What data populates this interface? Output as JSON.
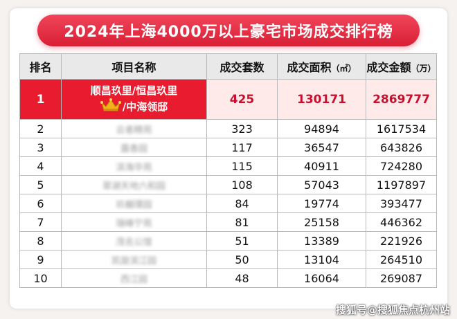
{
  "title": "2024年上海4000万以上豪宅市场成交排行榜",
  "headers": {
    "rank": "排名",
    "project": "项目名称",
    "units": "成交套数",
    "area": "成交面积",
    "area_unit": "（㎡）",
    "amount": "成交金额",
    "amount_unit": "（万）"
  },
  "top_row": {
    "rank": "1",
    "name_line1": "顺昌玖里/恒昌玖里",
    "name_line2": "/中海领邸",
    "units": "425",
    "area": "130171",
    "amount": "2869777"
  },
  "rows": [
    {
      "rank": "2",
      "name": "云者精苑",
      "units": "323",
      "area": "94894",
      "amount": "1617534"
    },
    {
      "rank": "3",
      "name": "露香园",
      "units": "117",
      "area": "36547",
      "amount": "643826"
    },
    {
      "rank": "4",
      "name": "滨海华苑",
      "units": "115",
      "area": "40911",
      "amount": "724280"
    },
    {
      "rank": "5",
      "name": "翠湖天地六和园",
      "units": "108",
      "area": "57043",
      "amount": "1197897"
    },
    {
      "rank": "6",
      "name": "玖樾璞园",
      "units": "84",
      "area": "19774",
      "amount": "393477"
    },
    {
      "rank": "7",
      "name": "瑞峰宁苑",
      "units": "81",
      "area": "25158",
      "amount": "446362"
    },
    {
      "rank": "8",
      "name": "茂名公馆",
      "units": "51",
      "area": "13389",
      "amount": "221926"
    },
    {
      "rank": "9",
      "name": "凯旋滨江园",
      "units": "50",
      "area": "13104",
      "amount": "264510"
    },
    {
      "rank": "10",
      "name": "西江园",
      "units": "48",
      "area": "16064",
      "amount": "269087"
    }
  ],
  "watermark": "搜狐号@搜狐焦点杭州站",
  "colors": {
    "accent_red": "#e81c2e",
    "highlight_text": "#c8102e",
    "crown_gold": "#f2b21b"
  }
}
